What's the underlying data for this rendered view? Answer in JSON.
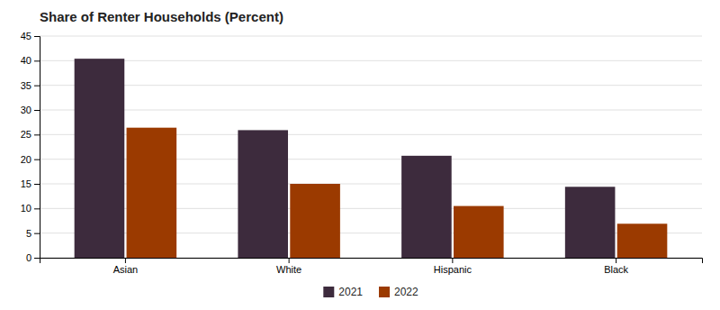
{
  "chart_data": {
    "type": "bar",
    "title": "Share of Renter Households (Percent)",
    "categories": [
      "Asian",
      "White",
      "Hispanic",
      "Black"
    ],
    "series": [
      {
        "name": "2021",
        "color": "#3d2b3d",
        "values": [
          40.4,
          25.9,
          20.7,
          14.4
        ]
      },
      {
        "name": "2022",
        "color": "#9b3a00",
        "values": [
          26.4,
          15.0,
          10.5,
          6.9
        ]
      }
    ],
    "ylim": [
      0,
      45
    ],
    "yticks": [
      0,
      5,
      10,
      15,
      20,
      25,
      30,
      35,
      40,
      45
    ],
    "grid": true,
    "legend": "bottom"
  }
}
